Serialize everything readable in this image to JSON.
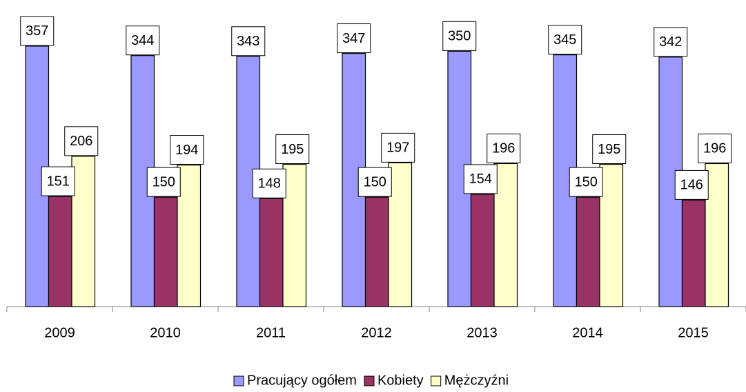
{
  "chart_data": {
    "type": "bar",
    "categories": [
      "2009",
      "2010",
      "2011",
      "2012",
      "2013",
      "2014",
      "2015"
    ],
    "series": [
      {
        "name": "Pracujący ogółem",
        "color": "#9999ff",
        "values": [
          357,
          344,
          343,
          347,
          350,
          345,
          342
        ]
      },
      {
        "name": "Kobiety",
        "color": "#993366",
        "values": [
          151,
          150,
          148,
          150,
          154,
          150,
          146
        ]
      },
      {
        "name": "Mężczyźni",
        "color": "#ffffcc",
        "values": [
          206,
          194,
          195,
          197,
          196,
          195,
          196
        ]
      }
    ],
    "ylim": [
      0,
      400
    ],
    "legend": "bottom"
  }
}
